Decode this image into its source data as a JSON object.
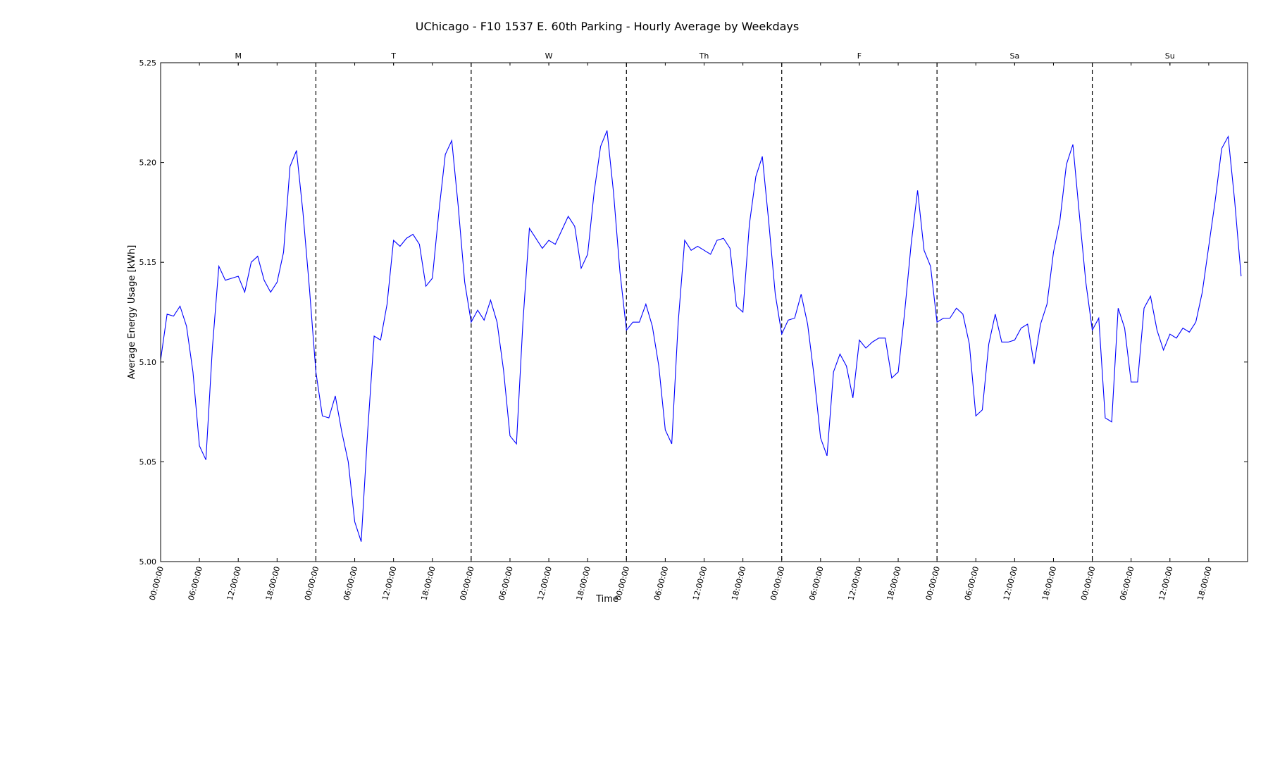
{
  "chart_data": {
    "type": "line",
    "title": "UChicago - F10 1537 E. 60th Parking - Hourly Average by Weekdays",
    "xlabel": "Time",
    "ylabel": "Average Energy Usage [kWh]",
    "ylim": [
      5.0,
      5.25
    ],
    "yticks": [
      "5.00",
      "5.05",
      "5.10",
      "5.15",
      "5.20",
      "5.25"
    ],
    "xticks": [
      "00:00:00",
      "06:00:00",
      "12:00:00",
      "18:00:00"
    ],
    "days": [
      "M",
      "T",
      "W",
      "Th",
      "F",
      "Sa",
      "Su"
    ],
    "hours_per_day": 24,
    "grid": false,
    "color": "#0000ff",
    "series": [
      {
        "values": [
          5.101,
          5.124,
          5.123,
          5.128,
          5.118,
          5.095,
          5.058,
          5.051,
          5.107,
          5.148,
          5.141,
          5.142,
          5.143,
          5.135,
          5.15,
          5.153,
          5.141,
          5.135,
          5.14,
          5.155,
          5.198,
          5.206,
          5.175,
          5.137,
          5.095,
          5.073,
          5.072,
          5.083,
          5.065,
          5.05,
          5.02,
          5.01,
          5.065,
          5.113,
          5.111,
          5.129,
          5.161,
          5.158,
          5.162,
          5.164,
          5.159,
          5.138,
          5.142,
          5.175,
          5.204,
          5.211,
          5.178,
          5.14,
          5.12,
          5.126,
          5.121,
          5.131,
          5.12,
          5.096,
          5.063,
          5.059,
          5.12,
          5.167,
          5.162,
          5.157,
          5.161,
          5.159,
          5.166,
          5.173,
          5.168,
          5.147,
          5.154,
          5.185,
          5.208,
          5.216,
          5.185,
          5.145,
          5.116,
          5.12,
          5.12,
          5.129,
          5.118,
          5.098,
          5.066,
          5.059,
          5.12,
          5.161,
          5.156,
          5.158,
          5.156,
          5.154,
          5.161,
          5.162,
          5.157,
          5.128,
          5.125,
          5.169,
          5.193,
          5.203,
          5.17,
          5.134,
          5.114,
          5.121,
          5.122,
          5.134,
          5.119,
          5.093,
          5.062,
          5.053,
          5.095,
          5.104,
          5.098,
          5.082,
          5.111,
          5.107,
          5.11,
          5.112,
          5.112,
          5.092,
          5.095,
          5.125,
          5.159,
          5.186,
          5.156,
          5.148,
          5.12,
          5.122,
          5.122,
          5.127,
          5.124,
          5.109,
          5.073,
          5.076,
          5.109,
          5.124,
          5.11,
          5.11,
          5.111,
          5.117,
          5.119,
          5.099,
          5.119,
          5.129,
          5.155,
          5.171,
          5.199,
          5.209,
          5.174,
          5.14,
          5.116,
          5.122,
          5.072,
          5.07,
          5.127,
          5.117,
          5.09,
          5.09,
          5.127,
          5.133,
          5.116,
          5.106,
          5.114,
          5.112,
          5.117,
          5.115,
          5.12,
          5.135,
          5.158,
          5.181,
          5.207,
          5.213,
          5.181,
          5.143
        ]
      }
    ]
  }
}
